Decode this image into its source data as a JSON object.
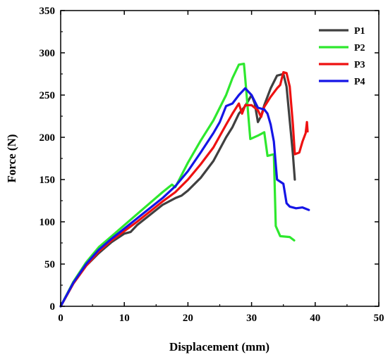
{
  "chart_data": {
    "type": "line",
    "title": "",
    "xlabel": "Displacement (mm)",
    "ylabel": "Force (N)",
    "xlim": [
      0,
      50
    ],
    "ylim": [
      0,
      350
    ],
    "xticks": [
      0,
      10,
      20,
      30,
      40,
      50
    ],
    "yticks": [
      0,
      50,
      100,
      150,
      200,
      250,
      300,
      350
    ],
    "grid": false,
    "legend_position": "top-right",
    "series": [
      {
        "name": "P1",
        "color": "#404040",
        "points": [
          [
            0,
            0
          ],
          [
            2,
            27
          ],
          [
            4,
            48
          ],
          [
            6,
            63
          ],
          [
            8,
            76
          ],
          [
            10,
            86
          ],
          [
            11,
            88
          ],
          [
            12,
            96
          ],
          [
            14,
            108
          ],
          [
            16,
            120
          ],
          [
            18,
            128
          ],
          [
            19,
            131
          ],
          [
            20,
            137
          ],
          [
            22,
            152
          ],
          [
            24,
            172
          ],
          [
            26,
            200
          ],
          [
            27,
            212
          ],
          [
            28,
            228
          ],
          [
            29,
            237
          ],
          [
            30,
            250
          ],
          [
            30.5,
            240
          ],
          [
            31,
            218
          ],
          [
            31.5,
            225
          ],
          [
            32,
            238
          ],
          [
            33,
            258
          ],
          [
            34,
            273
          ],
          [
            35,
            275
          ],
          [
            35.5,
            260
          ],
          [
            36,
            220
          ],
          [
            36.5,
            180
          ],
          [
            36.8,
            150
          ]
        ]
      },
      {
        "name": "P2",
        "color": "#2ee82e",
        "points": [
          [
            0,
            0
          ],
          [
            2,
            29
          ],
          [
            4,
            52
          ],
          [
            6,
            70
          ],
          [
            8,
            83
          ],
          [
            10,
            96
          ],
          [
            12,
            109
          ],
          [
            14,
            122
          ],
          [
            16,
            135
          ],
          [
            17,
            141
          ],
          [
            17.5,
            144
          ],
          [
            18,
            141
          ],
          [
            18.5,
            148
          ],
          [
            20,
            170
          ],
          [
            22,
            196
          ],
          [
            24,
            220
          ],
          [
            26,
            250
          ],
          [
            27,
            270
          ],
          [
            28,
            286
          ],
          [
            28.8,
            287
          ],
          [
            29,
            270
          ],
          [
            29.5,
            225
          ],
          [
            29.8,
            198
          ],
          [
            31,
            202
          ],
          [
            32,
            206
          ],
          [
            32.5,
            178
          ],
          [
            33.5,
            180
          ],
          [
            33.8,
            95
          ],
          [
            34.5,
            83
          ],
          [
            36,
            82
          ],
          [
            36.7,
            78
          ]
        ]
      },
      {
        "name": "P3",
        "color": "#ee1111",
        "points": [
          [
            0,
            0
          ],
          [
            2,
            27
          ],
          [
            4,
            48
          ],
          [
            6,
            65
          ],
          [
            8,
            78
          ],
          [
            10,
            89
          ],
          [
            12,
            100
          ],
          [
            14,
            112
          ],
          [
            16,
            124
          ],
          [
            18,
            135
          ],
          [
            20,
            150
          ],
          [
            22,
            168
          ],
          [
            24,
            188
          ],
          [
            26,
            215
          ],
          [
            27,
            228
          ],
          [
            28,
            240
          ],
          [
            28.5,
            228
          ],
          [
            29,
            238
          ],
          [
            30,
            238
          ],
          [
            31,
            232
          ],
          [
            31.5,
            224
          ],
          [
            32,
            236
          ],
          [
            33,
            248
          ],
          [
            34,
            258
          ],
          [
            34.5,
            262
          ],
          [
            35,
            277
          ],
          [
            35.5,
            276
          ],
          [
            36,
            260
          ],
          [
            36.5,
            215
          ],
          [
            36.8,
            180
          ],
          [
            37.5,
            182
          ],
          [
            38,
            195
          ],
          [
            38.5,
            205
          ],
          [
            38.7,
            218
          ],
          [
            38.8,
            207
          ]
        ]
      },
      {
        "name": "P4",
        "color": "#1515e6",
        "points": [
          [
            0,
            0
          ],
          [
            2,
            28
          ],
          [
            4,
            50
          ],
          [
            6,
            67
          ],
          [
            8,
            80
          ],
          [
            10,
            92
          ],
          [
            12,
            104
          ],
          [
            14,
            116
          ],
          [
            16,
            128
          ],
          [
            18,
            142
          ],
          [
            20,
            160
          ],
          [
            22,
            182
          ],
          [
            24,
            205
          ],
          [
            25,
            218
          ],
          [
            26,
            237
          ],
          [
            27,
            240
          ],
          [
            28,
            250
          ],
          [
            29,
            258
          ],
          [
            30,
            250
          ],
          [
            31,
            235
          ],
          [
            32,
            233
          ],
          [
            32.5,
            228
          ],
          [
            33,
            215
          ],
          [
            33.5,
            195
          ],
          [
            34,
            150
          ],
          [
            35,
            145
          ],
          [
            35.5,
            122
          ],
          [
            36,
            118
          ],
          [
            37,
            116
          ],
          [
            38,
            117
          ],
          [
            39,
            114
          ]
        ]
      }
    ]
  }
}
